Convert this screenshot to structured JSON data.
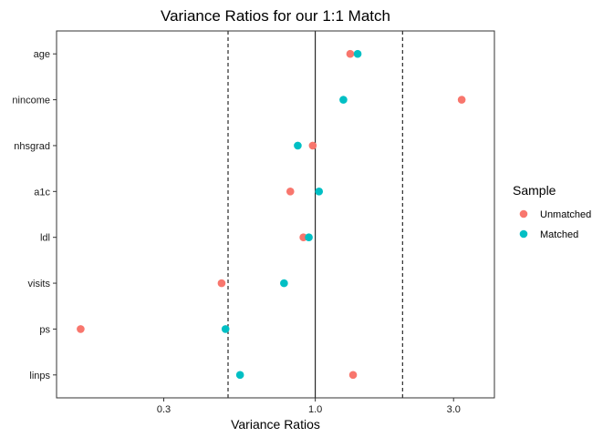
{
  "chart_data": {
    "type": "scatter",
    "title": "Variance Ratios for our 1:1 Match",
    "xlabel": "Variance Ratios",
    "ylabel": "",
    "x_scale": "log10",
    "xlim": [
      0.128,
      4.15
    ],
    "xticks": [
      {
        "value": 0.3,
        "label": "0.3"
      },
      {
        "value": 1.0,
        "label": "1.0"
      },
      {
        "value": 3.0,
        "label": "3.0"
      }
    ],
    "reference_lines": [
      {
        "value": 1.0,
        "style": "solid"
      },
      {
        "value": 0.5,
        "style": "dashed"
      },
      {
        "value": 2.0,
        "style": "dashed"
      }
    ],
    "categories": [
      "age",
      "nincome",
      "nhsgrad",
      "a1c",
      "ldl",
      "visits",
      "ps",
      "linps"
    ],
    "series": [
      {
        "name": "Unmatched",
        "color": "#F8766D",
        "values": [
          1.32,
          3.2,
          0.98,
          0.82,
          0.91,
          0.475,
          0.155,
          1.35
        ]
      },
      {
        "name": "Matched",
        "color": "#00BFC4",
        "values": [
          1.4,
          1.25,
          0.87,
          1.03,
          0.95,
          0.78,
          0.49,
          0.55
        ]
      }
    ],
    "legend": {
      "title": "Sample",
      "position": "right"
    },
    "grid": false
  }
}
